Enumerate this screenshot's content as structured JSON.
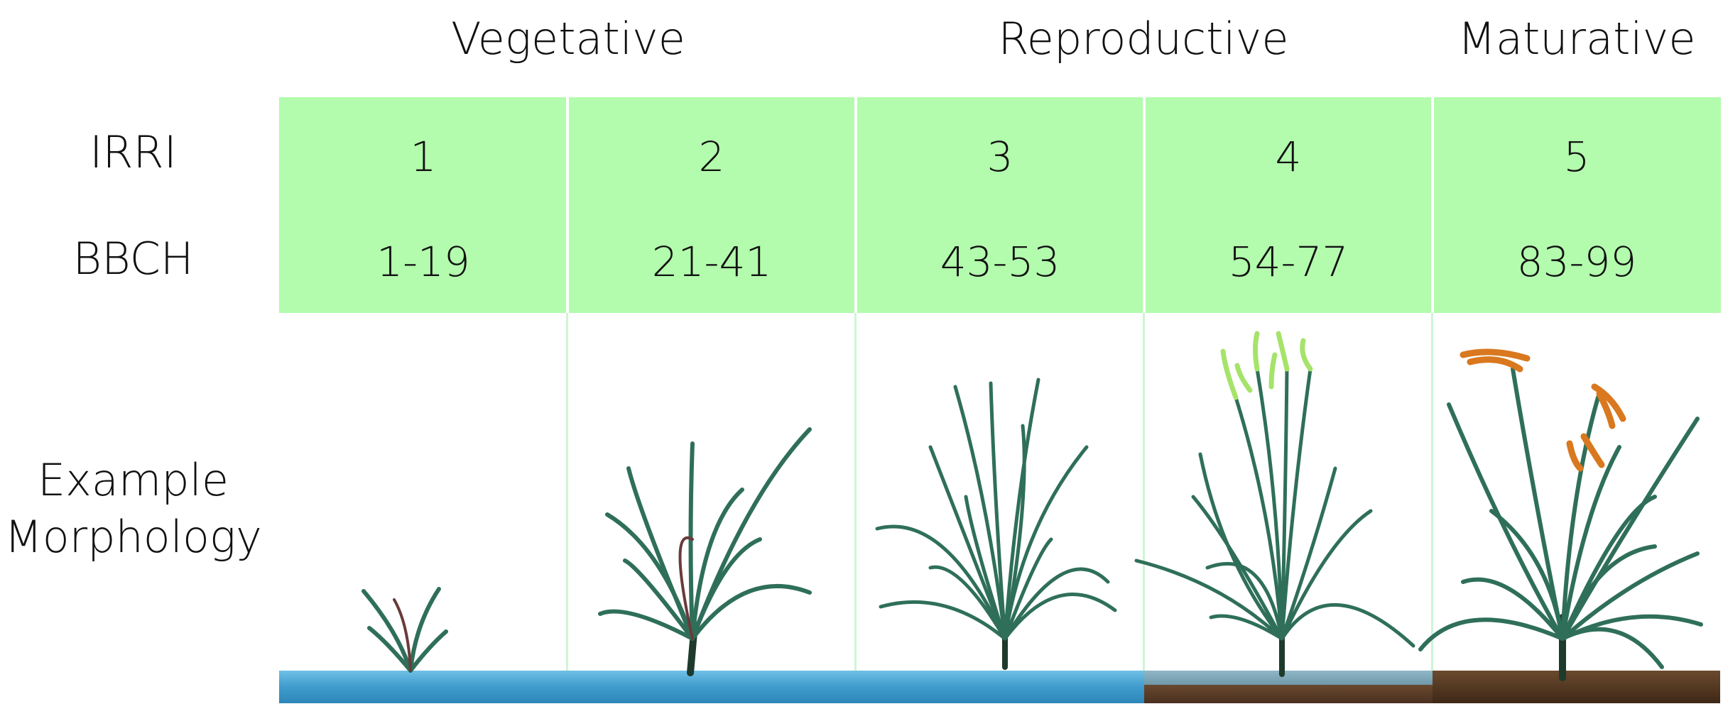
{
  "phases": [
    "Vegetative",
    "Reproductive",
    "Maturative"
  ],
  "row_labels": {
    "irri": "IRRI",
    "bbch": "BBCH",
    "morphology_line1": "Example",
    "morphology_line2": "Morphology"
  },
  "stages": [
    {
      "irri": "1",
      "bbch": "1-19"
    },
    {
      "irri": "2",
      "bbch": "21-41"
    },
    {
      "irri": "3",
      "bbch": "43-53"
    },
    {
      "irri": "4",
      "bbch": "54-77"
    },
    {
      "irri": "5",
      "bbch": "83-99"
    }
  ],
  "colors": {
    "band": "#b3fbad",
    "water": "#4aa6d4",
    "soil": "#5a3b22",
    "leaf": "#2f6f5a",
    "panicle_green": "#a6e36a",
    "panicle_ripe": "#d9781e"
  },
  "icons": [
    "seedling-plant",
    "tillering-plant",
    "booting-plant",
    "flowering-plant",
    "ripening-plant"
  ]
}
